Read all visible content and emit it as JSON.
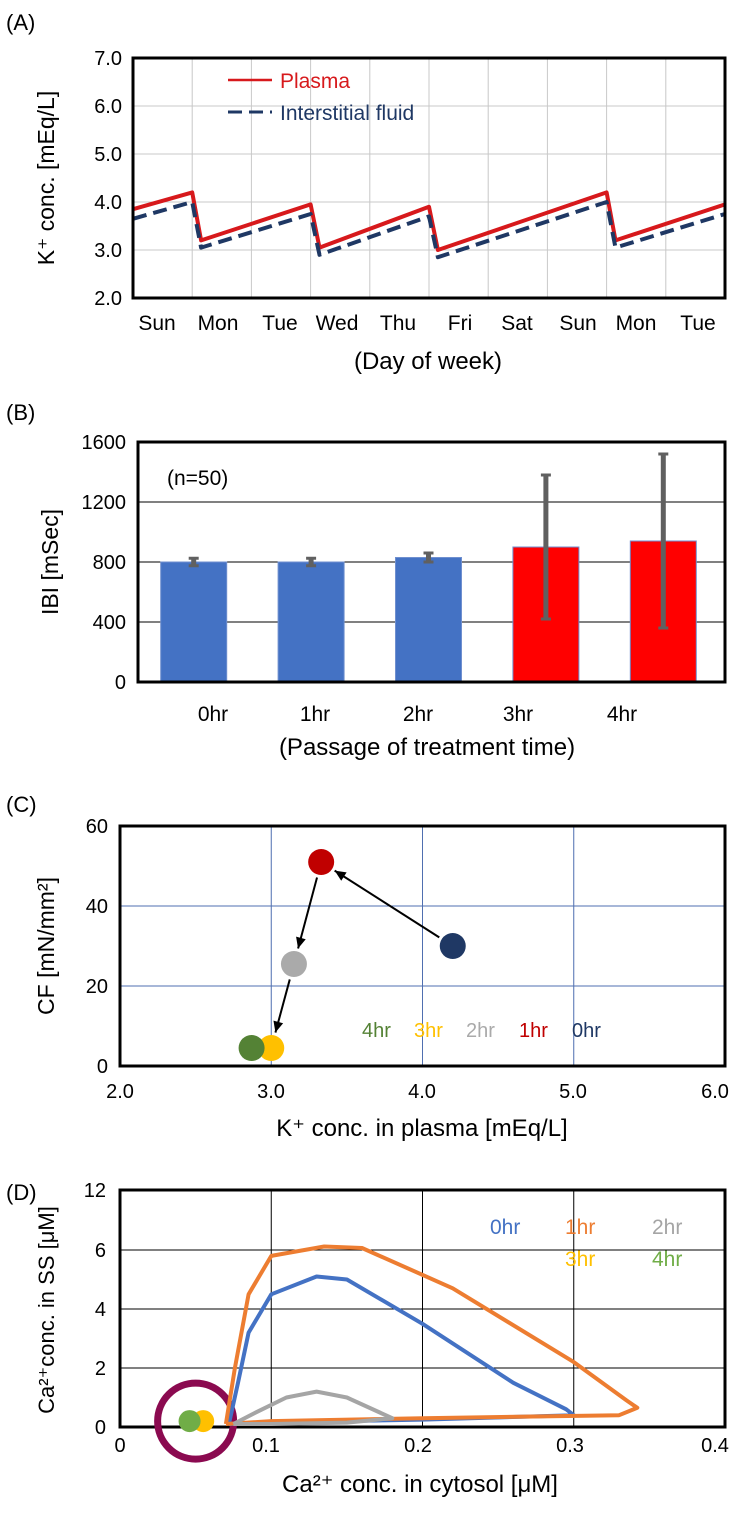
{
  "charts": [
    {
      "id": "A",
      "panel_label": "(A)",
      "type": "line",
      "xlabel": "(Day of week)",
      "ylabel": "K⁺ conc. [mEq/L]",
      "xlim": [
        0,
        10
      ],
      "ylim": [
        2.0,
        7.0
      ],
      "yticks": [
        "7.0",
        "6.0",
        "5.0",
        "4.0",
        "3.0",
        "2.0"
      ],
      "categories": [
        "Sun",
        "Mon",
        "Tue",
        "Wed",
        "Thu",
        "Fri",
        "Sat",
        "Sun",
        "Mon",
        "Tue"
      ],
      "legend": {
        "position": "top-left",
        "entries": [
          "Plasma",
          "Interstitial fluid"
        ]
      },
      "series": [
        {
          "name": "Plasma",
          "color": "#d7191c",
          "dash": "solid",
          "x": [
            0,
            1,
            1.15,
            3,
            3.15,
            5,
            5.15,
            8,
            8.15,
            10
          ],
          "y": [
            3.85,
            4.2,
            3.2,
            3.95,
            3.05,
            3.9,
            3.0,
            4.2,
            3.2,
            3.95
          ]
        },
        {
          "name": "Interstitial fluid",
          "color": "#1f3864",
          "dash": "dashed",
          "x": [
            0,
            1,
            1.15,
            3,
            3.15,
            5,
            5.15,
            8,
            8.15,
            10
          ],
          "y": [
            3.65,
            4.0,
            3.05,
            3.75,
            2.9,
            3.7,
            2.85,
            4.0,
            3.05,
            3.75
          ]
        }
      ]
    },
    {
      "id": "B",
      "panel_label": "(B)",
      "type": "bar",
      "xlabel": "(Passage of treatment time)",
      "ylabel": "IBI [mSec]",
      "ylim": [
        0,
        1600
      ],
      "yticks": [
        "1600",
        "1200",
        "800",
        "400",
        "0"
      ],
      "annotation": "(n=50)",
      "categories": [
        "0hr",
        "1hr",
        "2hr",
        "3hr",
        "4hr"
      ],
      "values": [
        800,
        800,
        830,
        900,
        940
      ],
      "error": [
        25,
        25,
        30,
        480,
        580
      ],
      "colors": [
        "#4472c4",
        "#4472c4",
        "#4472c4",
        "#ff0000",
        "#ff0000"
      ]
    },
    {
      "id": "C",
      "panel_label": "(C)",
      "type": "scatter",
      "xlabel": "K⁺ conc. in plasma [mEq/L]",
      "ylabel": "CF [mN/mm²]",
      "xlim": [
        2.0,
        6.0
      ],
      "ylim": [
        0,
        60
      ],
      "xticks": [
        "2.0",
        "3.0",
        "4.0",
        "5.0",
        "6.0"
      ],
      "yticks": [
        "60",
        "40",
        "20",
        "0"
      ],
      "points": [
        {
          "label": "0hr",
          "x": 4.2,
          "y": 30,
          "color": "#1f3864"
        },
        {
          "label": "1hr",
          "x": 3.33,
          "y": 51,
          "color": "#c00000"
        },
        {
          "label": "2hr",
          "x": 3.15,
          "y": 25.5,
          "color": "#aaaaaa"
        },
        {
          "label": "3hr",
          "x": 3.0,
          "y": 4.5,
          "color": "#ffc000"
        },
        {
          "label": "4hr",
          "x": 2.87,
          "y": 4.5,
          "color": "#548235"
        }
      ],
      "arrows": [
        [
          0,
          1
        ],
        [
          1,
          2
        ],
        [
          2,
          3
        ]
      ],
      "legend_order": [
        "4hr",
        "3hr",
        "2hr",
        "1hr",
        "0hr"
      ]
    },
    {
      "id": "D",
      "panel_label": "(D)",
      "type": "line",
      "xlabel": "Ca²⁺ conc. in cytosol [μM]",
      "ylabel": "Ca²⁺conc. in SS [μM]",
      "xlim": [
        0,
        0.4
      ],
      "xticks": [
        "0",
        "0.1",
        "0.2",
        "0.3",
        "0.4"
      ],
      "yticks": [
        "12",
        "6",
        "4",
        "2",
        "0"
      ],
      "legend": {
        "position": "top-right",
        "entries": [
          "0hr",
          "1hr",
          "2hr",
          "3hr",
          "4hr"
        ]
      },
      "series": [
        {
          "name": "0hr",
          "color": "#4472c4",
          "x": [
            0.072,
            0.078,
            0.085,
            0.1,
            0.13,
            0.15,
            0.2,
            0.26,
            0.295,
            0.3,
            0.2,
            0.1,
            0.072
          ],
          "y": [
            0.1,
            1.5,
            3.2,
            4.5,
            5.1,
            5.0,
            3.5,
            1.5,
            0.6,
            0.4,
            0.25,
            0.15,
            0.1
          ]
        },
        {
          "name": "1hr",
          "color": "#ed7d31",
          "x": [
            0.07,
            0.076,
            0.085,
            0.1,
            0.135,
            0.16,
            0.22,
            0.3,
            0.335,
            0.342,
            0.33,
            0.2,
            0.1,
            0.07
          ],
          "y": [
            0.1,
            2.0,
            4.5,
            5.8,
            6.35,
            6.2,
            4.7,
            2.2,
            0.9,
            0.65,
            0.4,
            0.3,
            0.2,
            0.1
          ]
        },
        {
          "name": "2hr",
          "color": "#a5a5a5",
          "x": [
            0.075,
            0.09,
            0.11,
            0.13,
            0.15,
            0.18,
            0.15,
            0.1,
            0.075
          ],
          "y": [
            0.1,
            0.5,
            1.0,
            1.2,
            1.0,
            0.3,
            0.15,
            0.1,
            0.1
          ]
        },
        {
          "name": "3hr",
          "color": "#ffc000",
          "x": [
            0.055
          ],
          "y": [
            0.2
          ]
        },
        {
          "name": "4hr",
          "color": "#70ad47",
          "x": [
            0.046
          ],
          "y": [
            0.2
          ]
        }
      ],
      "highlight": {
        "x": 0.05,
        "y": 0.2,
        "color": "#8b0a50"
      }
    }
  ]
}
